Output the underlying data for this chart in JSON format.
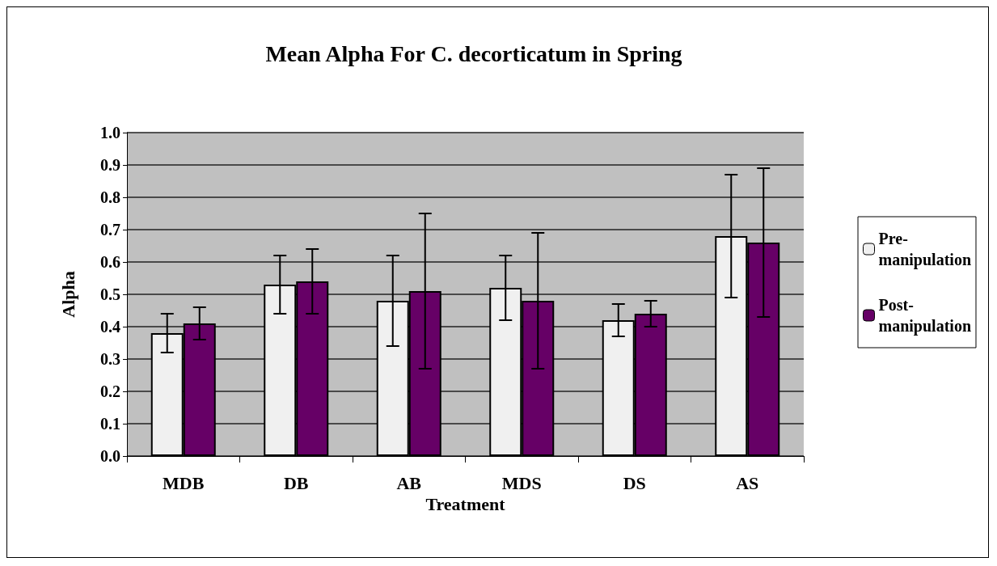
{
  "chart_data": {
    "type": "bar",
    "title": "Mean Alpha For C. decorticatum in Spring",
    "xlabel": "Treatment",
    "ylabel": "Alpha",
    "categories": [
      "MDB",
      "DB",
      "AB",
      "MDS",
      "DS",
      "AS"
    ],
    "series": [
      {
        "name": "Pre-manipulation",
        "color": "#f0f0f0",
        "values": [
          0.38,
          0.53,
          0.48,
          0.52,
          0.42,
          0.68
        ],
        "errors": [
          [
            0.32,
            0.44
          ],
          [
            0.44,
            0.62
          ],
          [
            0.34,
            0.62
          ],
          [
            0.42,
            0.62
          ],
          [
            0.37,
            0.47
          ],
          [
            0.49,
            0.87
          ]
        ]
      },
      {
        "name": "Post-manipulation",
        "color": "#660066",
        "values": [
          0.41,
          0.54,
          0.51,
          0.48,
          0.44,
          0.66
        ],
        "errors": [
          [
            0.36,
            0.46
          ],
          [
            0.44,
            0.64
          ],
          [
            0.27,
            0.75
          ],
          [
            0.27,
            0.69
          ],
          [
            0.4,
            0.48
          ],
          [
            0.43,
            0.89
          ]
        ]
      }
    ],
    "ylim": [
      0,
      1
    ],
    "yticks": [
      {
        "value": 0,
        "label": "0.0"
      },
      0.1,
      0.2,
      0.3,
      0.4,
      0.5,
      0.6,
      0.7,
      0.8,
      0.9,
      {
        "value": 1,
        "label": "1.0"
      }
    ],
    "grid": "y",
    "legend": "right"
  }
}
